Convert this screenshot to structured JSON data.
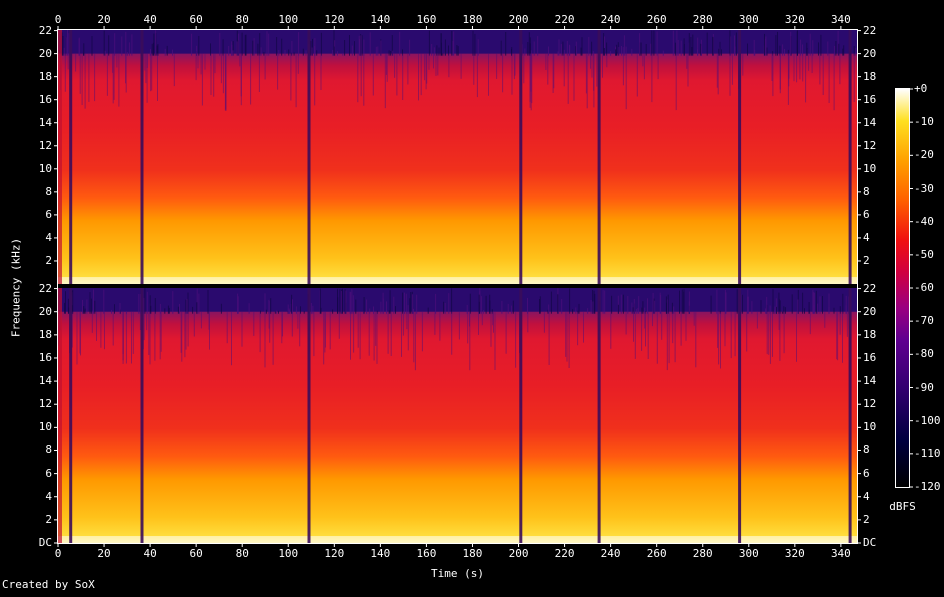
{
  "chart_data": {
    "type": "heatmap",
    "title": "",
    "xlabel": "Time (s)",
    "ylabel": "Frequency (kHz)",
    "xlim": [
      0,
      347
    ],
    "ylim": [
      0,
      22.05
    ],
    "x_ticks": [
      0,
      20,
      40,
      60,
      80,
      100,
      120,
      140,
      160,
      180,
      200,
      220,
      240,
      260,
      280,
      300,
      320,
      340
    ],
    "channels": [
      {
        "y_tick_labels": [
          "22",
          "20",
          "18",
          "16",
          "14",
          "12",
          "10",
          "8",
          "6",
          "4",
          "2"
        ]
      },
      {
        "y_tick_labels": [
          "22",
          "20",
          "18",
          "16",
          "14",
          "12",
          "10",
          "8",
          "6",
          "4",
          "2",
          "DC"
        ]
      }
    ],
    "colorbar": {
      "label": "dBFS",
      "range": [
        -120,
        0
      ],
      "tick_labels": [
        "+0",
        "-10",
        "-20",
        "-30",
        "-40",
        "-50",
        "-60",
        "-70",
        "-80",
        "-90",
        "-100",
        "-110",
        "-120"
      ]
    },
    "lowpass_cutoff_khz": 20,
    "quiet_segments_s": [
      5.5,
      36.5,
      109,
      201,
      235,
      296,
      344
    ]
  },
  "footer": {
    "credit": "Created by SoX"
  }
}
